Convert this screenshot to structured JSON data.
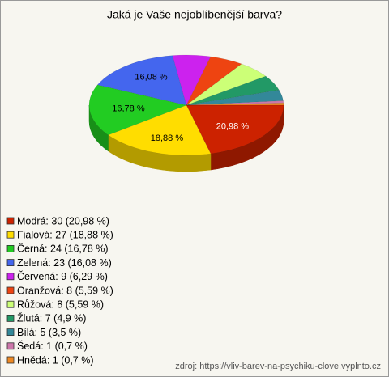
{
  "chart_data": {
    "type": "pie",
    "title": "Jaká je Vaše nejoblíbenější barva?",
    "categories": [
      "Modrá",
      "Fialová",
      "Černá",
      "Zelená",
      "Červená",
      "Oranžová",
      "Růžová",
      "Žlutá",
      "Bílá",
      "Šedá",
      "Hnědá"
    ],
    "values": [
      20.98,
      18.88,
      16.78,
      16.08,
      6.29,
      5.59,
      5.59,
      4.9,
      3.5,
      0.7,
      0.7
    ],
    "value_labels": [
      "20,98 %",
      "18,88 %",
      "16,78 %",
      "16,08 %",
      null,
      null,
      null,
      null,
      null,
      null,
      null
    ],
    "legend_labels": [
      "Modrá: 30 (20,98 %)",
      "Fialová: 27 (18,88 %)",
      "Černá: 24 (16,78 %)",
      "Zelená: 23 (16,08 %)",
      "Červená: 9 (6,29 %)",
      "Oranžová: 8 (5,59 %)",
      "Růžová: 8 (5,59 %)",
      "Žlutá: 7 (4,9 %)",
      "Bílá: 5 (3,5 %)",
      "Šedá: 1 (0,7 %)",
      "Hnědá: 1 (0,7 %)"
    ],
    "colors": [
      "#cc2200",
      "#ffdd00",
      "#22cc22",
      "#4466ee",
      "#cc22ee",
      "#ee4411",
      "#ccff77",
      "#229966",
      "#338899",
      "#cc77aa",
      "#ee8822"
    ],
    "source": "zdroj: https://vliv-barev-na-psychiku-clove.vyplnto.cz"
  }
}
